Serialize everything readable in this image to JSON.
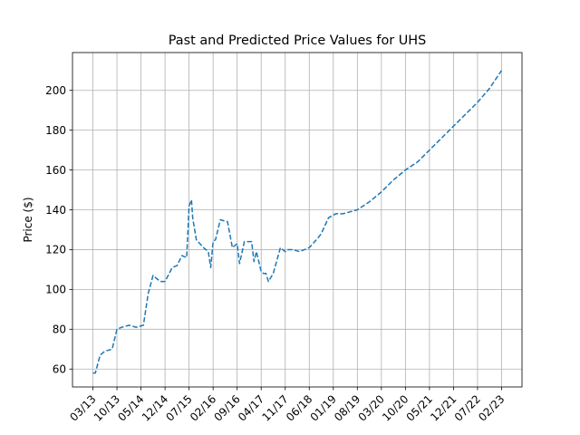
{
  "chart_data": {
    "type": "line",
    "title": "Past and Predicted Price Values for UHS",
    "xlabel": "",
    "ylabel": "Price ($)",
    "ylim": [
      51,
      219
    ],
    "yticks": [
      60,
      80,
      100,
      120,
      140,
      160,
      180,
      200
    ],
    "grid": true,
    "legend": "none",
    "line_color": "#1f77b4",
    "line_style": "dashed",
    "categories": [
      "03/13",
      "10/13",
      "05/14",
      "12/14",
      "07/15",
      "02/16",
      "09/16",
      "04/17",
      "11/17",
      "06/18",
      "01/19",
      "08/19",
      "03/20",
      "10/20",
      "05/21",
      "12/21",
      "07/22",
      "02/23"
    ],
    "series": [
      {
        "name": "",
        "x": [
          0,
          0.1,
          0.3,
          0.5,
          0.8,
          1.0,
          1.2,
          1.5,
          1.8,
          2.1,
          2.3,
          2.5,
          2.8,
          3.0,
          3.3,
          3.5,
          3.7,
          3.9,
          4.0,
          4.1,
          4.15,
          4.3,
          4.6,
          4.8,
          4.9,
          5.0,
          5.1,
          5.3,
          5.6,
          5.8,
          5.9,
          6.0,
          6.1,
          6.3,
          6.6,
          6.7,
          6.8,
          7.0,
          7.1,
          7.2,
          7.3,
          7.5,
          7.8,
          8.0,
          8.1,
          8.3,
          8.6,
          9.0,
          9.3,
          9.5,
          9.8,
          10.1,
          10.4,
          10.7,
          11.0,
          11.5,
          12.0,
          12.5,
          13.0,
          13.5,
          14.0,
          14.5,
          15.0,
          15.5,
          16.0,
          16.5,
          17.0
        ],
        "values": [
          58,
          58,
          67,
          69,
          70,
          80,
          81,
          82,
          81,
          82,
          98,
          107,
          104,
          104,
          111,
          112,
          117,
          116,
          142,
          145,
          136,
          125,
          121,
          119,
          111,
          124,
          125,
          135,
          134,
          121,
          122,
          123,
          113,
          124,
          124,
          114,
          119,
          109,
          108,
          108,
          104,
          108,
          121,
          119,
          120,
          120,
          119,
          121,
          125,
          128,
          136,
          138,
          138,
          139,
          140,
          144,
          149,
          155,
          160,
          164,
          170,
          176,
          182,
          188,
          194,
          201,
          210
        ]
      }
    ]
  }
}
